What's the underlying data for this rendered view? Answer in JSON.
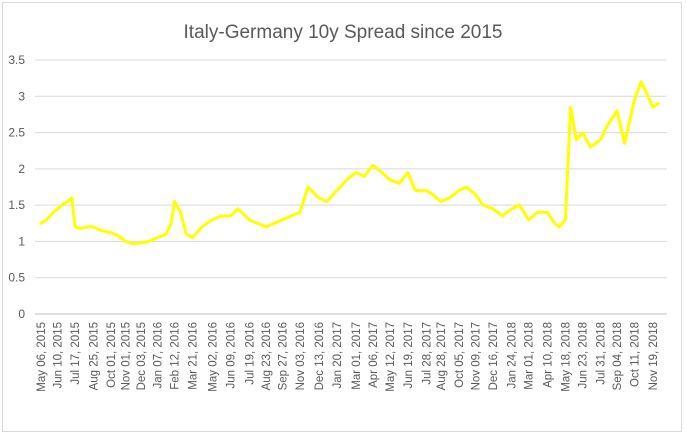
{
  "chart_data": {
    "type": "line",
    "title": "Italy-Germany 10y Spread since 2015",
    "xlabel": "",
    "ylabel": "",
    "ylim": [
      0,
      3.5
    ],
    "yticks": [
      "0",
      "0.5",
      "1",
      "1.5",
      "2",
      "2.5",
      "3",
      "3.5"
    ],
    "grid": true,
    "legend": "none",
    "series_color": "#ffff00",
    "categories": [
      "May 06, 2015",
      "Jun 10, 2015",
      "Jul 17, 2015",
      "Aug 25, 2015",
      "Oct 01, 2015",
      "Nov 01, 2015",
      "Dec 03, 2015",
      "Jan 07, 2016",
      "Feb 12, 2016",
      "Mar 21, 2016",
      "May 02, 2016",
      "Jun 09, 2016",
      "Jul 19, 2016",
      "Aug 23, 2016",
      "Sep 27, 2016",
      "Nov 03, 2016",
      "Dec 13, 2016",
      "Jan 20, 2017",
      "Mar 01, 2017",
      "Apr 06, 2017",
      "May 12, 2017",
      "Jun 19, 2017",
      "Jul 28, 2017",
      "Aug 28, 2017",
      "Oct 05, 2017",
      "Nov 09, 2017",
      "Dec 16, 2017",
      "Jan 24, 2018",
      "Mar 01, 2018",
      "Apr 10, 2018",
      "May 18, 2018",
      "Jun 23, 2018",
      "Jul 31, 2018",
      "Sep 04, 2018",
      "Oct 11, 2018",
      "Nov 19, 2018"
    ],
    "series": [
      {
        "x": [
          "May 06, 2015",
          "May 18, 2015",
          "Jun 01, 2015",
          "Jun 10, 2015",
          "Jun 20, 2015",
          "Jul 01, 2015",
          "Jul 10, 2015",
          "Jul 17, 2015",
          "Jul 28, 2015",
          "Aug 10, 2015",
          "Aug 25, 2015",
          "Sep 10, 2015",
          "Oct 01, 2015",
          "Oct 15, 2015",
          "Nov 01, 2015",
          "Nov 15, 2015",
          "Dec 03, 2015",
          "Dec 20, 2015",
          "Jan 07, 2016",
          "Jan 25, 2016",
          "Feb 05, 2016",
          "Feb 12, 2016",
          "Feb 25, 2016",
          "Mar 08, 2016",
          "Mar 21, 2016",
          "Apr 10, 2016",
          "May 02, 2016",
          "May 20, 2016",
          "Jun 09, 2016",
          "Jun 25, 2016",
          "Jul 19, 2016",
          "Aug 05, 2016",
          "Aug 23, 2016",
          "Sep 10, 2016",
          "Sep 27, 2016",
          "Oct 15, 2016",
          "Nov 03, 2016",
          "Nov 20, 2016",
          "Dec 13, 2016",
          "Dec 30, 2016",
          "Jan 20, 2017",
          "Feb 10, 2017",
          "Mar 01, 2017",
          "Mar 20, 2017",
          "Apr 06, 2017",
          "Apr 25, 2017",
          "May 12, 2017",
          "Jun 01, 2017",
          "Jun 19, 2017",
          "Jul 05, 2017",
          "Jul 28, 2017",
          "Aug 10, 2017",
          "Aug 28, 2017",
          "Sep 15, 2017",
          "Oct 05, 2017",
          "Oct 20, 2017",
          "Nov 09, 2017",
          "Nov 25, 2017",
          "Dec 16, 2017",
          "Jan 05, 2018",
          "Jan 24, 2018",
          "Feb 10, 2018",
          "Mar 01, 2018",
          "Mar 20, 2018",
          "Apr 10, 2018",
          "Apr 25, 2018",
          "May 05, 2018",
          "May 18, 2018",
          "May 29, 2018",
          "Jun 10, 2018",
          "Jun 23, 2018",
          "Jul 10, 2018",
          "Jul 31, 2018",
          "Aug 15, 2018",
          "Sep 04, 2018",
          "Sep 20, 2018",
          "Oct 11, 2018",
          "Oct 25, 2018",
          "Nov 05, 2018",
          "Nov 19, 2018",
          "Nov 30, 2018"
        ],
        "values": [
          1.25,
          1.3,
          1.4,
          1.45,
          1.5,
          1.55,
          1.6,
          1.2,
          1.18,
          1.2,
          1.2,
          1.15,
          1.12,
          1.08,
          1.0,
          0.97,
          0.98,
          1.0,
          1.05,
          1.1,
          1.25,
          1.55,
          1.4,
          1.1,
          1.05,
          1.2,
          1.3,
          1.35,
          1.35,
          1.45,
          1.3,
          1.25,
          1.2,
          1.25,
          1.3,
          1.35,
          1.4,
          1.75,
          1.6,
          1.55,
          1.7,
          1.85,
          1.95,
          1.9,
          2.05,
          1.95,
          1.85,
          1.8,
          1.95,
          1.7,
          1.7,
          1.65,
          1.55,
          1.6,
          1.7,
          1.75,
          1.65,
          1.5,
          1.45,
          1.35,
          1.45,
          1.5,
          1.3,
          1.4,
          1.4,
          1.25,
          1.2,
          1.3,
          2.85,
          2.4,
          2.5,
          2.3,
          2.4,
          2.6,
          2.8,
          2.35,
          2.95,
          3.2,
          3.05,
          2.85,
          2.9
        ]
      }
    ]
  }
}
